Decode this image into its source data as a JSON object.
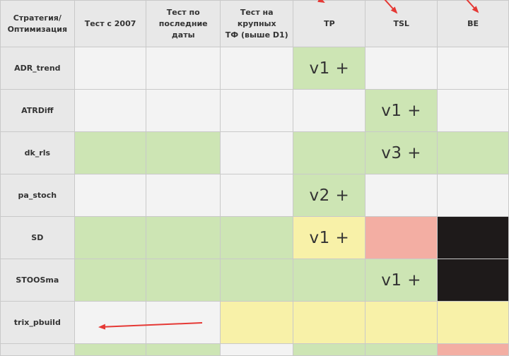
{
  "columns": [
    "Стратегия/\nОптимизация",
    "Тест с 2007",
    "Тест по\nпоследние даты",
    "Тест на крупных\nТФ (выше D1)",
    "TP",
    "TSL",
    "BE"
  ],
  "rows": [
    {
      "name": "ADR_trend",
      "cells": [
        {
          "color": "empty",
          "text": ""
        },
        {
          "color": "empty",
          "text": ""
        },
        {
          "color": "empty",
          "text": ""
        },
        {
          "color": "green",
          "text": "v1 +"
        },
        {
          "color": "empty",
          "text": ""
        },
        {
          "color": "empty",
          "text": ""
        }
      ]
    },
    {
      "name": "ATRDiff",
      "cells": [
        {
          "color": "empty",
          "text": ""
        },
        {
          "color": "empty",
          "text": ""
        },
        {
          "color": "empty",
          "text": ""
        },
        {
          "color": "empty",
          "text": ""
        },
        {
          "color": "green",
          "text": "v1 +"
        },
        {
          "color": "empty",
          "text": ""
        }
      ]
    },
    {
      "name": "dk_rls",
      "cells": [
        {
          "color": "green",
          "text": ""
        },
        {
          "color": "green",
          "text": ""
        },
        {
          "color": "empty",
          "text": ""
        },
        {
          "color": "green",
          "text": ""
        },
        {
          "color": "green",
          "text": "v3 +"
        },
        {
          "color": "green",
          "text": ""
        }
      ]
    },
    {
      "name": "pa_stoch",
      "cells": [
        {
          "color": "empty",
          "text": ""
        },
        {
          "color": "empty",
          "text": ""
        },
        {
          "color": "empty",
          "text": ""
        },
        {
          "color": "green",
          "text": "v2 +"
        },
        {
          "color": "empty",
          "text": ""
        },
        {
          "color": "empty",
          "text": ""
        }
      ]
    },
    {
      "name": "SD",
      "cells": [
        {
          "color": "green",
          "text": ""
        },
        {
          "color": "green",
          "text": ""
        },
        {
          "color": "green",
          "text": ""
        },
        {
          "color": "yellow",
          "text": "v1 +"
        },
        {
          "color": "pink",
          "text": ""
        },
        {
          "color": "black",
          "text": ""
        }
      ]
    },
    {
      "name": "STOOSma",
      "cells": [
        {
          "color": "green",
          "text": ""
        },
        {
          "color": "green",
          "text": ""
        },
        {
          "color": "green",
          "text": ""
        },
        {
          "color": "green",
          "text": ""
        },
        {
          "color": "green",
          "text": "v1 +"
        },
        {
          "color": "black",
          "text": ""
        }
      ]
    },
    {
      "name": "trix_pbuild",
      "cells": [
        {
          "color": "empty",
          "text": ""
        },
        {
          "color": "empty",
          "text": ""
        },
        {
          "color": "yellow",
          "text": ""
        },
        {
          "color": "yellow",
          "text": ""
        },
        {
          "color": "yellow",
          "text": ""
        },
        {
          "color": "yellow",
          "text": ""
        }
      ]
    },
    {
      "name": "",
      "cells": [
        {
          "color": "green",
          "text": ""
        },
        {
          "color": "green",
          "text": ""
        },
        {
          "color": "empty",
          "text": ""
        },
        {
          "color": "green",
          "text": ""
        },
        {
          "color": "green",
          "text": ""
        },
        {
          "color": "pink",
          "text": ""
        }
      ]
    }
  ],
  "colors": {
    "green": "#cde5b4",
    "yellow": "#f8f1a8",
    "pink": "#f3aea3",
    "black": "#1e1a1a",
    "header": "#e8e8e8",
    "empty": "#f3f3f3",
    "annotation_arrow": "#e53935"
  }
}
